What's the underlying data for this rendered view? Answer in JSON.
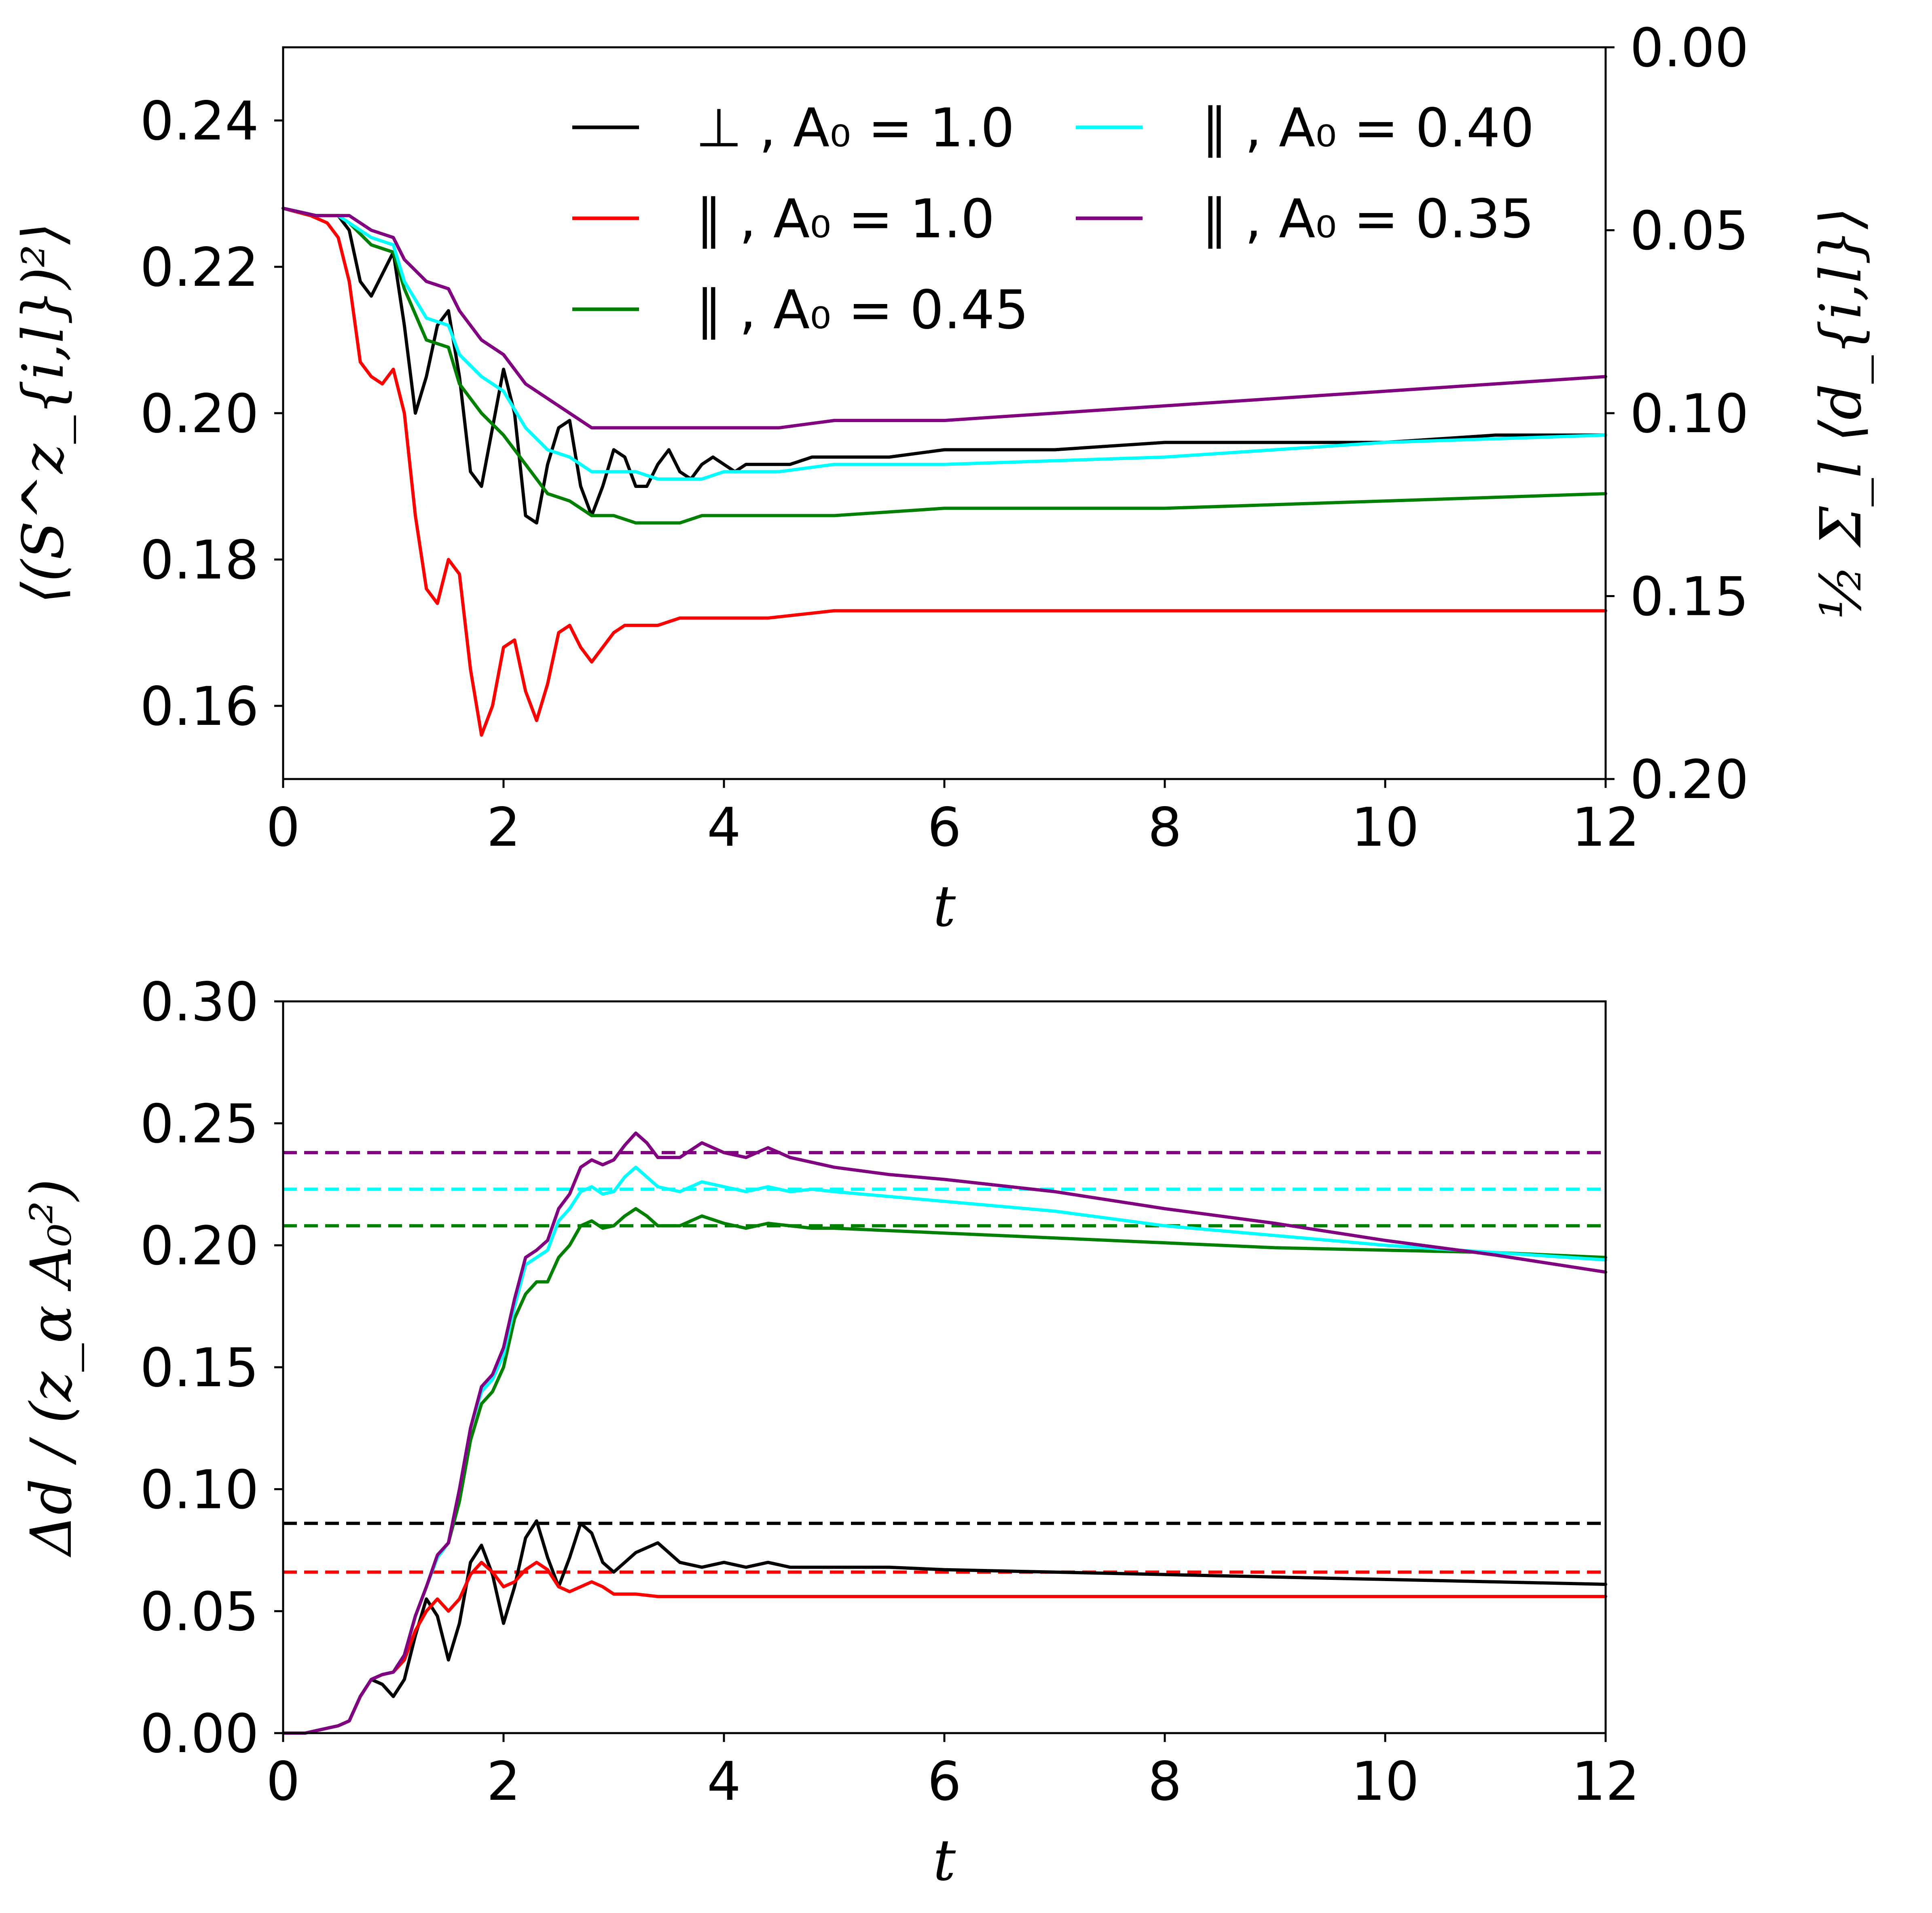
{
  "chart_data": [
    {
      "type": "line",
      "id": "top",
      "xlabel": "t",
      "ylabel": "⟨(S^z_{i,l})²⟩",
      "ylabel_right": "½ Σ_l ⟨d_{i,l}⟩",
      "xlim": [
        0,
        12
      ],
      "ylim": [
        0.15,
        0.25
      ],
      "ylim_right": [
        0.2,
        0.0
      ],
      "xticks": [
        "0",
        "2",
        "4",
        "6",
        "8",
        "10",
        "12"
      ],
      "yticks": [
        "0.16",
        "0.18",
        "0.20",
        "0.22",
        "0.24"
      ],
      "yticks_right": [
        "0.00",
        "0.05",
        "0.10",
        "0.15",
        "0.20"
      ],
      "legend_position": "top-right",
      "series": [
        {
          "name": "⊥ , A₀ = 1.0",
          "color": "#000000",
          "x": [
            0,
            0.25,
            0.5,
            0.6,
            0.7,
            0.8,
            0.9,
            1.0,
            1.1,
            1.2,
            1.3,
            1.4,
            1.5,
            1.6,
            1.7,
            1.8,
            1.9,
            2.0,
            2.1,
            2.2,
            2.3,
            2.4,
            2.5,
            2.6,
            2.7,
            2.8,
            2.9,
            3.0,
            3.1,
            3.2,
            3.3,
            3.4,
            3.5,
            3.6,
            3.7,
            3.8,
            3.9,
            4.0,
            4.1,
            4.2,
            4.3,
            4.4,
            4.6,
            4.8,
            5.0,
            5.5,
            6.0,
            7.0,
            8.0,
            9.0,
            10.0,
            11.0,
            12.0
          ],
          "values": [
            0.228,
            0.227,
            0.227,
            0.225,
            0.218,
            0.216,
            0.219,
            0.222,
            0.212,
            0.2,
            0.205,
            0.212,
            0.214,
            0.205,
            0.192,
            0.19,
            0.198,
            0.206,
            0.2,
            0.186,
            0.185,
            0.193,
            0.198,
            0.199,
            0.19,
            0.186,
            0.19,
            0.195,
            0.194,
            0.19,
            0.19,
            0.193,
            0.195,
            0.192,
            0.191,
            0.193,
            0.194,
            0.193,
            0.192,
            0.193,
            0.193,
            0.193,
            0.193,
            0.194,
            0.194,
            0.194,
            0.195,
            0.195,
            0.196,
            0.196,
            0.196,
            0.197,
            0.197
          ]
        },
        {
          "name": "∥ , A₀ = 1.0",
          "color": "#ff0000",
          "x": [
            0,
            0.25,
            0.4,
            0.5,
            0.6,
            0.7,
            0.8,
            0.9,
            1.0,
            1.1,
            1.2,
            1.3,
            1.4,
            1.5,
            1.6,
            1.7,
            1.8,
            1.9,
            2.0,
            2.1,
            2.2,
            2.3,
            2.4,
            2.5,
            2.6,
            2.7,
            2.8,
            2.9,
            3.0,
            3.1,
            3.2,
            3.4,
            3.6,
            3.8,
            4.0,
            4.4,
            5.0,
            6.0,
            8.0,
            10.0,
            12.0
          ],
          "values": [
            0.228,
            0.227,
            0.226,
            0.224,
            0.218,
            0.207,
            0.205,
            0.204,
            0.206,
            0.2,
            0.186,
            0.176,
            0.174,
            0.18,
            0.178,
            0.165,
            0.156,
            0.16,
            0.168,
            0.169,
            0.162,
            0.158,
            0.163,
            0.17,
            0.171,
            0.168,
            0.166,
            0.168,
            0.17,
            0.171,
            0.171,
            0.171,
            0.172,
            0.172,
            0.172,
            0.172,
            0.173,
            0.173,
            0.173,
            0.173,
            0.173
          ]
        },
        {
          "name": "∥ , A₀ = 0.45",
          "color": "#008000",
          "x": [
            0,
            0.3,
            0.5,
            0.6,
            0.8,
            1.0,
            1.1,
            1.3,
            1.5,
            1.6,
            1.8,
            2.0,
            2.2,
            2.4,
            2.6,
            2.8,
            3.0,
            3.2,
            3.4,
            3.6,
            3.8,
            4.0,
            4.2,
            4.5,
            5.0,
            6.0,
            8.0,
            10.0,
            12.0
          ],
          "values": [
            0.228,
            0.227,
            0.227,
            0.226,
            0.223,
            0.222,
            0.217,
            0.21,
            0.209,
            0.204,
            0.2,
            0.197,
            0.193,
            0.189,
            0.188,
            0.186,
            0.186,
            0.185,
            0.185,
            0.185,
            0.186,
            0.186,
            0.186,
            0.186,
            0.186,
            0.187,
            0.187,
            0.188,
            0.189
          ]
        },
        {
          "name": "∥ , A₀ = 0.40",
          "color": "#00ffff",
          "x": [
            0,
            0.3,
            0.5,
            0.6,
            0.8,
            1.0,
            1.1,
            1.3,
            1.5,
            1.6,
            1.8,
            2.0,
            2.2,
            2.4,
            2.6,
            2.8,
            3.0,
            3.2,
            3.4,
            3.6,
            3.8,
            4.0,
            4.2,
            4.5,
            5.0,
            6.0,
            8.0,
            10.0,
            12.0
          ],
          "values": [
            0.228,
            0.227,
            0.227,
            0.226,
            0.224,
            0.223,
            0.218,
            0.213,
            0.212,
            0.208,
            0.205,
            0.203,
            0.198,
            0.195,
            0.194,
            0.192,
            0.192,
            0.192,
            0.191,
            0.191,
            0.191,
            0.192,
            0.192,
            0.192,
            0.193,
            0.193,
            0.194,
            0.196,
            0.197
          ]
        },
        {
          "name": "∥ , A₀ = 0.35",
          "color": "#800080",
          "x": [
            0,
            0.3,
            0.5,
            0.6,
            0.8,
            1.0,
            1.1,
            1.3,
            1.5,
            1.6,
            1.8,
            2.0,
            2.2,
            2.4,
            2.6,
            2.8,
            3.0,
            3.2,
            3.4,
            3.6,
            3.8,
            4.0,
            4.2,
            4.5,
            5.0,
            6.0,
            8.0,
            10.0,
            12.0
          ],
          "values": [
            0.228,
            0.227,
            0.227,
            0.227,
            0.225,
            0.224,
            0.221,
            0.218,
            0.217,
            0.214,
            0.21,
            0.208,
            0.204,
            0.202,
            0.2,
            0.198,
            0.198,
            0.198,
            0.198,
            0.198,
            0.198,
            0.198,
            0.198,
            0.198,
            0.199,
            0.199,
            0.201,
            0.203,
            0.205
          ]
        }
      ]
    },
    {
      "type": "line",
      "id": "bottom",
      "xlabel": "t",
      "ylabel": "Δd / (z_α A₀²)",
      "xlim": [
        0,
        12
      ],
      "ylim": [
        0.0,
        0.3
      ],
      "xticks": [
        "0",
        "2",
        "4",
        "6",
        "8",
        "10",
        "12"
      ],
      "yticks": [
        "0.00",
        "0.05",
        "0.10",
        "0.15",
        "0.20",
        "0.25",
        "0.30"
      ],
      "series": [
        {
          "name": "⊥ , A₀ = 1.0",
          "color": "#000000",
          "x": [
            0,
            0.2,
            0.4,
            0.5,
            0.6,
            0.7,
            0.8,
            0.9,
            1.0,
            1.1,
            1.2,
            1.3,
            1.4,
            1.5,
            1.6,
            1.7,
            1.8,
            1.9,
            2.0,
            2.1,
            2.2,
            2.3,
            2.4,
            2.5,
            2.6,
            2.7,
            2.8,
            2.9,
            3.0,
            3.1,
            3.2,
            3.4,
            3.6,
            3.8,
            4.0,
            4.2,
            4.4,
            4.6,
            4.8,
            5.0,
            5.5,
            6.0,
            7.0,
            8.0,
            9.0,
            10.0,
            11.0,
            12.0
          ],
          "values": [
            0,
            0,
            0.002,
            0.003,
            0.005,
            0.015,
            0.022,
            0.02,
            0.015,
            0.022,
            0.04,
            0.055,
            0.048,
            0.03,
            0.045,
            0.07,
            0.077,
            0.065,
            0.045,
            0.06,
            0.08,
            0.087,
            0.072,
            0.06,
            0.072,
            0.086,
            0.082,
            0.07,
            0.066,
            0.07,
            0.074,
            0.078,
            0.07,
            0.068,
            0.07,
            0.068,
            0.07,
            0.068,
            0.068,
            0.068,
            0.068,
            0.067,
            0.066,
            0.065,
            0.064,
            0.063,
            0.062,
            0.061
          ]
        },
        {
          "name": "∥ , A₀ = 1.0",
          "color": "#ff0000",
          "x": [
            0,
            0.2,
            0.4,
            0.5,
            0.6,
            0.7,
            0.8,
            0.9,
            1.0,
            1.1,
            1.2,
            1.3,
            1.4,
            1.5,
            1.6,
            1.7,
            1.8,
            1.9,
            2.0,
            2.1,
            2.2,
            2.3,
            2.4,
            2.5,
            2.6,
            2.7,
            2.8,
            2.9,
            3.0,
            3.2,
            3.4,
            3.6,
            4.0,
            5.0,
            6.0,
            8.0,
            10.0,
            12.0
          ],
          "values": [
            0,
            0,
            0.002,
            0.003,
            0.005,
            0.015,
            0.022,
            0.024,
            0.025,
            0.03,
            0.042,
            0.05,
            0.055,
            0.05,
            0.055,
            0.065,
            0.07,
            0.066,
            0.06,
            0.062,
            0.067,
            0.07,
            0.067,
            0.06,
            0.058,
            0.06,
            0.062,
            0.06,
            0.057,
            0.057,
            0.056,
            0.056,
            0.056,
            0.056,
            0.056,
            0.056,
            0.056,
            0.056
          ]
        },
        {
          "name": "∥ , A₀ = 0.45",
          "color": "#008000",
          "x": [
            0,
            0.2,
            0.4,
            0.5,
            0.6,
            0.7,
            0.8,
            0.9,
            1.0,
            1.1,
            1.2,
            1.3,
            1.4,
            1.5,
            1.6,
            1.7,
            1.8,
            1.9,
            2.0,
            2.1,
            2.2,
            2.3,
            2.4,
            2.5,
            2.6,
            2.7,
            2.8,
            2.9,
            3.0,
            3.1,
            3.2,
            3.3,
            3.4,
            3.6,
            3.8,
            4.0,
            4.2,
            4.4,
            4.6,
            4.8,
            5.0,
            5.5,
            6.0,
            7.0,
            8.0,
            9.0,
            10.0,
            11.0,
            12.0
          ],
          "values": [
            0,
            0,
            0.002,
            0.003,
            0.005,
            0.015,
            0.022,
            0.024,
            0.025,
            0.032,
            0.048,
            0.06,
            0.072,
            0.078,
            0.095,
            0.12,
            0.135,
            0.14,
            0.15,
            0.17,
            0.18,
            0.185,
            0.185,
            0.195,
            0.2,
            0.208,
            0.21,
            0.207,
            0.208,
            0.212,
            0.215,
            0.212,
            0.208,
            0.208,
            0.212,
            0.209,
            0.207,
            0.209,
            0.208,
            0.207,
            0.207,
            0.206,
            0.205,
            0.203,
            0.201,
            0.199,
            0.198,
            0.197,
            0.195
          ]
        },
        {
          "name": "∥ , A₀ = 0.40",
          "color": "#00ffff",
          "x": [
            0,
            0.2,
            0.4,
            0.5,
            0.6,
            0.7,
            0.8,
            0.9,
            1.0,
            1.1,
            1.2,
            1.3,
            1.4,
            1.5,
            1.6,
            1.7,
            1.8,
            1.9,
            2.0,
            2.1,
            2.2,
            2.3,
            2.4,
            2.5,
            2.6,
            2.7,
            2.8,
            2.9,
            3.0,
            3.1,
            3.2,
            3.3,
            3.4,
            3.6,
            3.8,
            4.0,
            4.2,
            4.4,
            4.6,
            4.8,
            5.0,
            5.5,
            6.0,
            7.0,
            8.0,
            9.0,
            10.0,
            11.0,
            12.0
          ],
          "values": [
            0,
            0,
            0.002,
            0.003,
            0.005,
            0.015,
            0.022,
            0.024,
            0.025,
            0.032,
            0.048,
            0.06,
            0.072,
            0.078,
            0.1,
            0.125,
            0.14,
            0.145,
            0.155,
            0.175,
            0.192,
            0.195,
            0.198,
            0.21,
            0.215,
            0.222,
            0.224,
            0.221,
            0.222,
            0.228,
            0.232,
            0.228,
            0.224,
            0.222,
            0.226,
            0.224,
            0.222,
            0.224,
            0.222,
            0.223,
            0.222,
            0.22,
            0.218,
            0.214,
            0.208,
            0.204,
            0.2,
            0.197,
            0.194
          ]
        },
        {
          "name": "∥ , A₀ = 0.35",
          "color": "#800080",
          "x": [
            0,
            0.2,
            0.4,
            0.5,
            0.6,
            0.7,
            0.8,
            0.9,
            1.0,
            1.1,
            1.2,
            1.3,
            1.4,
            1.5,
            1.6,
            1.7,
            1.8,
            1.9,
            2.0,
            2.1,
            2.2,
            2.3,
            2.4,
            2.5,
            2.6,
            2.7,
            2.8,
            2.9,
            3.0,
            3.1,
            3.2,
            3.3,
            3.4,
            3.6,
            3.8,
            4.0,
            4.2,
            4.4,
            4.6,
            4.8,
            5.0,
            5.5,
            6.0,
            7.0,
            8.0,
            9.0,
            10.0,
            11.0,
            12.0
          ],
          "values": [
            0,
            0,
            0.002,
            0.003,
            0.005,
            0.015,
            0.022,
            0.024,
            0.025,
            0.032,
            0.048,
            0.06,
            0.073,
            0.078,
            0.1,
            0.125,
            0.142,
            0.147,
            0.158,
            0.178,
            0.195,
            0.198,
            0.202,
            0.215,
            0.221,
            0.232,
            0.235,
            0.233,
            0.235,
            0.241,
            0.246,
            0.242,
            0.236,
            0.236,
            0.242,
            0.238,
            0.236,
            0.24,
            0.236,
            0.234,
            0.232,
            0.229,
            0.227,
            0.222,
            0.215,
            0.209,
            0.202,
            0.196,
            0.189
          ]
        }
      ],
      "reference_lines": [
        {
          "name": "∥ , A₀ = 0.35 limit",
          "color": "#800080",
          "value": 0.238
        },
        {
          "name": "∥ , A₀ = 0.40 limit",
          "color": "#00ffff",
          "value": 0.223
        },
        {
          "name": "∥ , A₀ = 0.45 limit",
          "color": "#008000",
          "value": 0.208
        },
        {
          "name": "⊥ , A₀ = 1.0 limit",
          "color": "#000000",
          "value": 0.086
        },
        {
          "name": "∥ , A₀ = 1.0 limit",
          "color": "#ff0000",
          "value": 0.066
        }
      ]
    }
  ]
}
